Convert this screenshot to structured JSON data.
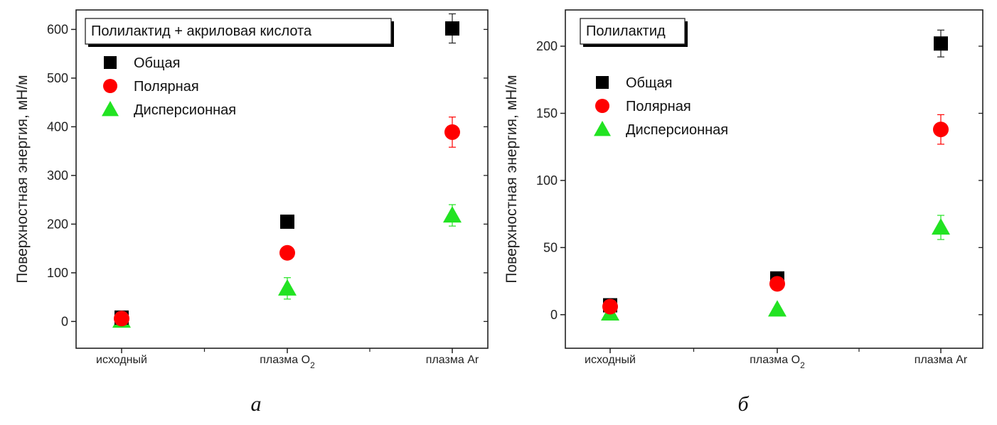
{
  "chart_data": [
    {
      "type": "scatter",
      "title": "Полилактид + акриловая кислота",
      "ylabel": "Поверхностная энергия, мН/м",
      "categories": [
        "исходный",
        "плазма O",
        "плазма Ar"
      ],
      "category_subscripts": [
        "",
        "2",
        ""
      ],
      "ylim": [
        -55,
        640
      ],
      "yticks": [
        0,
        100,
        200,
        300,
        400,
        500,
        600
      ],
      "legend_position": "top-left",
      "series": [
        {
          "name": "Общая",
          "marker": "square",
          "color": "#000000",
          "values": [
            8,
            205,
            602
          ],
          "errors": [
            0,
            0,
            30
          ]
        },
        {
          "name": "Полярная",
          "marker": "circle",
          "color": "#ff0000",
          "values": [
            6,
            141,
            389
          ],
          "errors": [
            0,
            0,
            31
          ]
        },
        {
          "name": "Дисперсионная",
          "marker": "triangle",
          "color": "#22e322",
          "values": [
            2,
            68,
            218
          ],
          "errors": [
            0,
            22,
            22
          ]
        }
      ],
      "caption": "а"
    },
    {
      "type": "scatter",
      "title": "Полилактид",
      "ylabel": "Поверхностная энергия, мН/м",
      "categories": [
        "исходный",
        "плазма O",
        "плазма Ar"
      ],
      "category_subscripts": [
        "",
        "2",
        ""
      ],
      "ylim": [
        -25,
        227
      ],
      "yticks": [
        0,
        50,
        100,
        150,
        200
      ],
      "legend_position": "top-left",
      "series": [
        {
          "name": "Общая",
          "marker": "square",
          "color": "#000000",
          "values": [
            7,
            27,
            202
          ],
          "errors": [
            0,
            0,
            10
          ]
        },
        {
          "name": "Полярная",
          "marker": "circle",
          "color": "#ff0000",
          "values": [
            6,
            23,
            138
          ],
          "errors": [
            0,
            0,
            11
          ]
        },
        {
          "name": "Дисперсионная",
          "marker": "triangle",
          "color": "#22e322",
          "values": [
            1,
            4,
            65
          ],
          "errors": [
            0,
            0,
            9
          ]
        }
      ],
      "caption": "б"
    }
  ]
}
